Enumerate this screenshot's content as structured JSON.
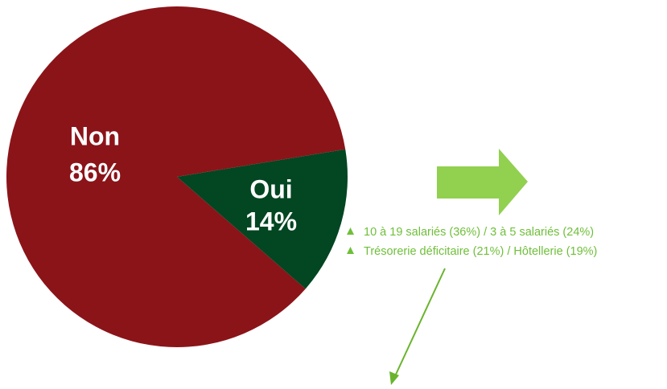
{
  "chart_data": {
    "type": "pie",
    "categories": [
      "Non",
      "Oui"
    ],
    "values": [
      86,
      14
    ],
    "value_labels": [
      "86%",
      "14%"
    ],
    "colors": [
      "#8b1419",
      "#024622"
    ],
    "annotations": [
      "10 à 19 salariés (36%) / 3 à 5 salariés (24%)",
      "Trésorerie déficitaire (21%) / Hôtellerie (19%)"
    ]
  }
}
